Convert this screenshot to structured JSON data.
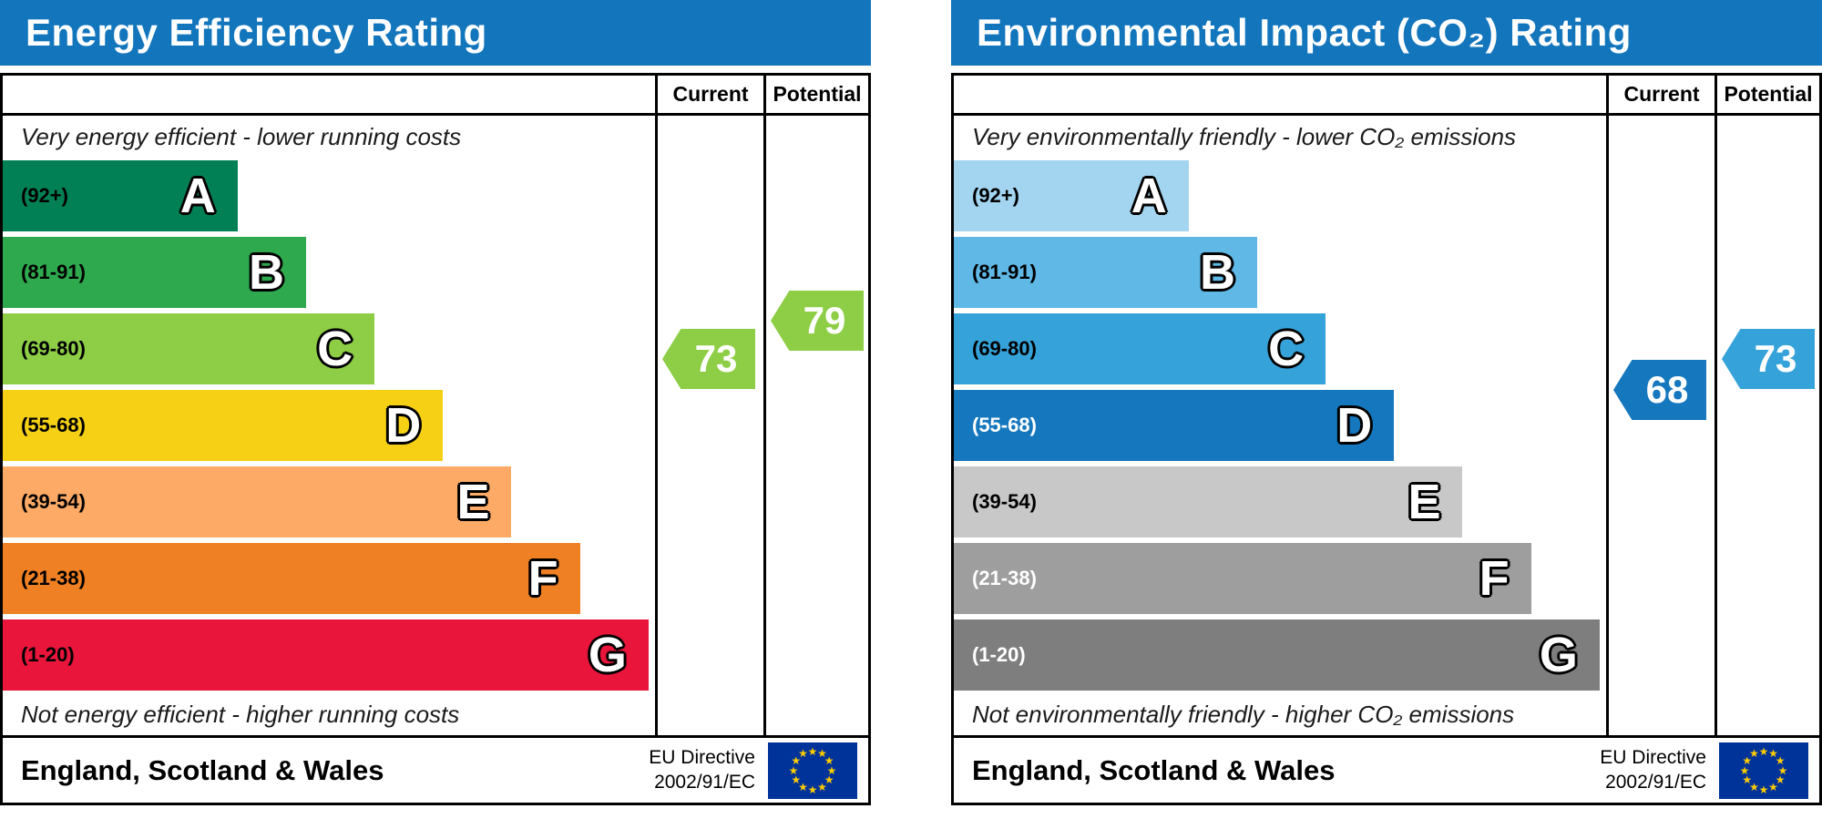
{
  "theme": {
    "header_color": "#1376bd",
    "border_color": "#000000",
    "eu_flag_blue": "#003399",
    "eu_star_yellow": "#ffcc00"
  },
  "icons": {
    "eu_flag_star": "★"
  },
  "chart_data": [
    {
      "type": "bar",
      "variant": "epc-energy-efficiency",
      "title": "Energy Efficiency Rating",
      "columns": {
        "current": "Current",
        "potential": "Potential"
      },
      "top_caption": "Very energy efficient - lower running costs",
      "bottom_caption": "Not energy efficient - higher running costs",
      "bands": [
        {
          "letter": "A",
          "range_label": "(92+)",
          "min": 92,
          "max": 100,
          "color": "#008054",
          "width_pct": 36,
          "label_color": "#000000"
        },
        {
          "letter": "B",
          "range_label": "(81-91)",
          "min": 81,
          "max": 91,
          "color": "#2ea94d",
          "width_pct": 46.5,
          "label_color": "#000000"
        },
        {
          "letter": "C",
          "range_label": "(69-80)",
          "min": 69,
          "max": 80,
          "color": "#8dce46",
          "width_pct": 57,
          "label_color": "#000000"
        },
        {
          "letter": "D",
          "range_label": "(55-68)",
          "min": 55,
          "max": 68,
          "color": "#f5d015",
          "width_pct": 67.5,
          "label_color": "#000000"
        },
        {
          "letter": "E",
          "range_label": "(39-54)",
          "min": 39,
          "max": 54,
          "color": "#fcaa65",
          "width_pct": 78,
          "label_color": "#000000"
        },
        {
          "letter": "F",
          "range_label": "(21-38)",
          "min": 21,
          "max": 38,
          "color": "#ef8023",
          "width_pct": 88.5,
          "label_color": "#000000"
        },
        {
          "letter": "G",
          "range_label": "(1-20)",
          "min": 1,
          "max": 20,
          "color": "#e9153b",
          "width_pct": 99,
          "label_color": "#000000"
        }
      ],
      "current": {
        "value": 73,
        "color": "#8dce46"
      },
      "potential": {
        "value": 79,
        "color": "#8dce46"
      },
      "footer": {
        "region": "England, Scotland & Wales",
        "directive_line1": "EU Directive",
        "directive_line2": "2002/91/EC"
      }
    },
    {
      "type": "bar",
      "variant": "epc-environmental-impact",
      "title": "Environmental Impact (CO₂) Rating",
      "columns": {
        "current": "Current",
        "potential": "Potential"
      },
      "top_caption": "Very environmentally friendly - lower CO₂ emissions",
      "bottom_caption": "Not environmentally friendly - higher CO₂ emissions",
      "bands": [
        {
          "letter": "A",
          "range_label": "(92+)",
          "min": 92,
          "max": 100,
          "color": "#a3d4f0",
          "width_pct": 36,
          "label_color": "#000000"
        },
        {
          "letter": "B",
          "range_label": "(81-91)",
          "min": 81,
          "max": 91,
          "color": "#5fb8e6",
          "width_pct": 46.5,
          "label_color": "#000000"
        },
        {
          "letter": "C",
          "range_label": "(69-80)",
          "min": 69,
          "max": 80,
          "color": "#35a3da",
          "width_pct": 57,
          "label_color": "#000000"
        },
        {
          "letter": "D",
          "range_label": "(55-68)",
          "min": 55,
          "max": 68,
          "color": "#1577bd",
          "width_pct": 67.5,
          "label_color": "#ffffff"
        },
        {
          "letter": "E",
          "range_label": "(39-54)",
          "min": 39,
          "max": 54,
          "color": "#c8c8c8",
          "width_pct": 78,
          "label_color": "#000000"
        },
        {
          "letter": "F",
          "range_label": "(21-38)",
          "min": 21,
          "max": 38,
          "color": "#9e9e9e",
          "width_pct": 88.5,
          "label_color": "#ffffff"
        },
        {
          "letter": "G",
          "range_label": "(1-20)",
          "min": 1,
          "max": 20,
          "color": "#7e7e7e",
          "width_pct": 99,
          "label_color": "#ffffff"
        }
      ],
      "current": {
        "value": 68,
        "color": "#1577bd"
      },
      "potential": {
        "value": 73,
        "color": "#35a3da"
      },
      "footer": {
        "region": "England, Scotland & Wales",
        "directive_line1": "EU Directive",
        "directive_line2": "2002/91/EC"
      }
    }
  ]
}
